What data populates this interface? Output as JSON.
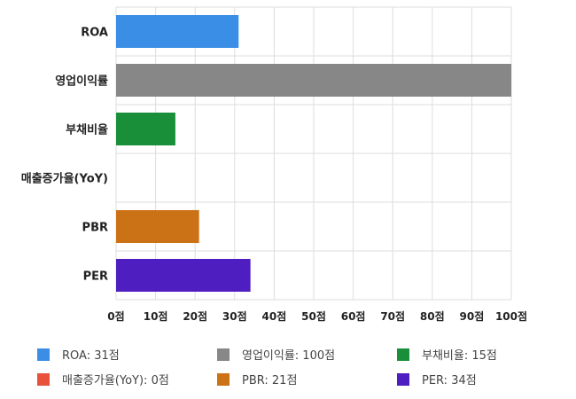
{
  "chart_data": {
    "type": "bar",
    "orientation": "horizontal",
    "categories": [
      "ROA",
      "영업이익률",
      "부채비율",
      "매출증가율(YoY)",
      "PBR",
      "PER"
    ],
    "values": [
      31,
      100,
      15,
      0,
      21,
      34
    ],
    "colors": [
      "#3a8ee6",
      "#878787",
      "#1a8f3a",
      "#e8523a",
      "#cc7216",
      "#4e1ec0"
    ],
    "xlim": [
      0,
      100
    ],
    "xticks": [
      0,
      10,
      20,
      30,
      40,
      50,
      60,
      70,
      80,
      90,
      100
    ],
    "tick_suffix": "점",
    "grid": true,
    "legend_position": "bottom",
    "legend": [
      {
        "label": "ROA: 31점",
        "color": "#3a8ee6"
      },
      {
        "label": "영업이익률: 100점",
        "color": "#878787"
      },
      {
        "label": "부채비율: 15점",
        "color": "#1a8f3a"
      },
      {
        "label": "매출증가율(YoY): 0점",
        "color": "#e8523a"
      },
      {
        "label": "PBR: 21점",
        "color": "#cc7216"
      },
      {
        "label": "PER: 34점",
        "color": "#4e1ec0"
      }
    ]
  }
}
